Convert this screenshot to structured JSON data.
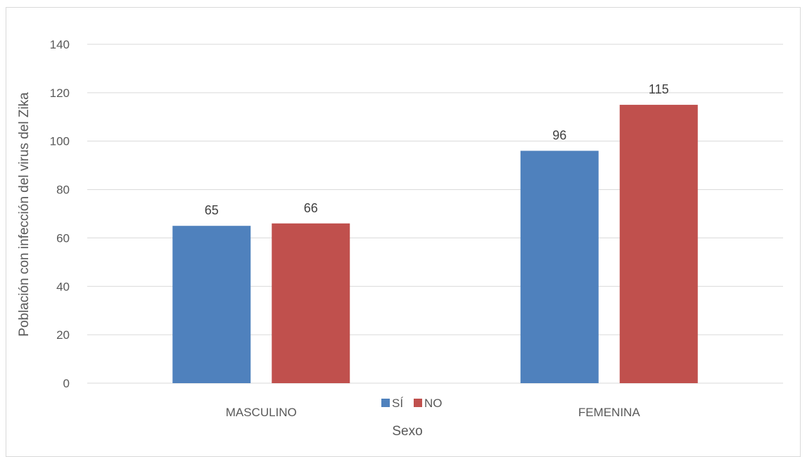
{
  "chart_data": {
    "type": "bar",
    "categories": [
      "MASCULINO",
      "FEMENINA"
    ],
    "series": [
      {
        "name": "SÍ",
        "values": [
          65,
          96
        ],
        "color": "#4f81bd"
      },
      {
        "name": "NO",
        "values": [
          66,
          115
        ],
        "color": "#c0504d"
      }
    ],
    "title": "",
    "xlabel": "Sexo",
    "ylabel": "Población con infección del virus del Zika",
    "ylim": [
      0,
      140
    ],
    "yticks": [
      0,
      20,
      40,
      60,
      80,
      100,
      120,
      140
    ],
    "grid": true,
    "gridColor": "#d9d9d9",
    "legend": "bottom-center",
    "data_labels": true
  }
}
